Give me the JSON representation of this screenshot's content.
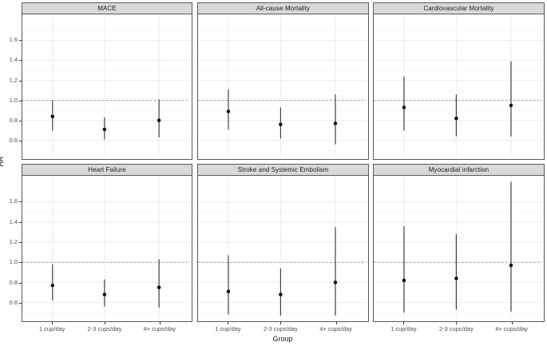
{
  "figure": {
    "ylabel": "HR",
    "xlabel": "Group",
    "y_tick_labels": [
      "0.6",
      "0.8",
      "1.0",
      "1.2",
      "1.4",
      "1.6"
    ],
    "y_minor_ticks": [
      0.5,
      0.7,
      0.9,
      1.1,
      1.3,
      1.5,
      1.7
    ],
    "ylim": [
      0.43,
      1.86
    ],
    "reference_line": 1.0,
    "categories": [
      "1 cup/day",
      "2-3 cups/day",
      "4+ cups/day"
    ]
  },
  "colors": {
    "strip_fill": "#d9d9d9",
    "panel_border": "#595959",
    "grid_major": "#ebebeb",
    "grid_minor": "#f5f5f5",
    "reference_line": "#999999",
    "error_bar": "#404040",
    "point": "#000000",
    "tick_text": "#4d4d4d"
  },
  "chart_data": {
    "type": "scatter",
    "subtype": "forest-pointrange",
    "title": "",
    "xlabel": "Group",
    "ylabel": "HR",
    "categories": [
      "1 cup/day",
      "2-3 cups/day",
      "4+ cups/day"
    ],
    "grid": true,
    "legend": false,
    "facets": [
      {
        "title": "MACE",
        "series": [
          {
            "group": "1 cup/day",
            "hr": 0.84,
            "ci_low": 0.7,
            "ci_high": 1.0
          },
          {
            "group": "2-3 cups/day",
            "hr": 0.71,
            "ci_low": 0.61,
            "ci_high": 0.83
          },
          {
            "group": "4+ cups/day",
            "hr": 0.8,
            "ci_low": 0.63,
            "ci_high": 1.01
          }
        ]
      },
      {
        "title": "All-cause Mortality",
        "series": [
          {
            "group": "1 cup/day",
            "hr": 0.89,
            "ci_low": 0.71,
            "ci_high": 1.11
          },
          {
            "group": "2-3 cups/day",
            "hr": 0.76,
            "ci_low": 0.62,
            "ci_high": 0.93
          },
          {
            "group": "4+ cups/day",
            "hr": 0.77,
            "ci_low": 0.56,
            "ci_high": 1.06
          }
        ]
      },
      {
        "title": "Cardiovascular Mortality",
        "series": [
          {
            "group": "1 cup/day",
            "hr": 0.93,
            "ci_low": 0.7,
            "ci_high": 1.24
          },
          {
            "group": "2-3 cups/day",
            "hr": 0.82,
            "ci_low": 0.64,
            "ci_high": 1.06
          },
          {
            "group": "4+ cups/day",
            "hr": 0.95,
            "ci_low": 0.64,
            "ci_high": 1.39
          }
        ]
      },
      {
        "title": "Heart Failure",
        "series": [
          {
            "group": "1 cup/day",
            "hr": 0.77,
            "ci_low": 0.62,
            "ci_high": 0.98
          },
          {
            "group": "2-3 cups/day",
            "hr": 0.68,
            "ci_low": 0.56,
            "ci_high": 0.83
          },
          {
            "group": "4+ cups/day",
            "hr": 0.75,
            "ci_low": 0.55,
            "ci_high": 1.03
          }
        ]
      },
      {
        "title": "Stroke and Systemic Embolism",
        "series": [
          {
            "group": "1 cup/day",
            "hr": 0.71,
            "ci_low": 0.48,
            "ci_high": 1.07
          },
          {
            "group": "2-3 cups/day",
            "hr": 0.68,
            "ci_low": 0.47,
            "ci_high": 0.94
          },
          {
            "group": "4+ cups/day",
            "hr": 0.8,
            "ci_low": 0.47,
            "ci_high": 1.35
          }
        ]
      },
      {
        "title": "Myocardial infarction",
        "series": [
          {
            "group": "1 cup/day",
            "hr": 0.82,
            "ci_low": 0.5,
            "ci_high": 1.36
          },
          {
            "group": "2-3 cups/day",
            "hr": 0.84,
            "ci_low": 0.53,
            "ci_high": 1.28
          },
          {
            "group": "4+ cups/day",
            "hr": 0.97,
            "ci_low": 0.51,
            "ci_high": 1.8
          }
        ]
      }
    ]
  }
}
